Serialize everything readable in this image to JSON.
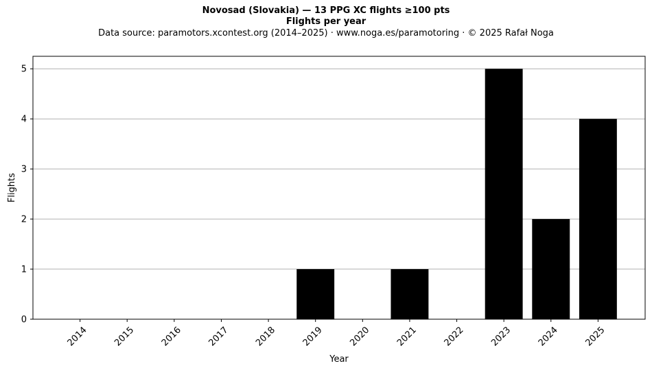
{
  "header": {
    "title_line1": "Novosad (Slovakia)  —  13 PPG XC flights ≥100 pts",
    "title_line2": "Flights per year",
    "source": "Data source: paramotors.xcontest.org (2014–2025)  ·  www.noga.es/paramotoring  ·  © 2025 Rafał Noga"
  },
  "chart_data": {
    "type": "bar",
    "title": "Flights per year",
    "xlabel": "Year",
    "ylabel": "Flights",
    "categories": [
      "2014",
      "2015",
      "2016",
      "2017",
      "2018",
      "2019",
      "2020",
      "2021",
      "2022",
      "2023",
      "2024",
      "2025"
    ],
    "values": [
      0,
      0,
      0,
      0,
      0,
      1,
      0,
      1,
      0,
      5,
      2,
      4
    ],
    "ylim": [
      0,
      5.25
    ],
    "yticks": [
      0,
      1,
      2,
      3,
      4,
      5
    ],
    "grid": "horizontal",
    "bar_color": "#000000",
    "grid_color": "#b0b0b0"
  }
}
